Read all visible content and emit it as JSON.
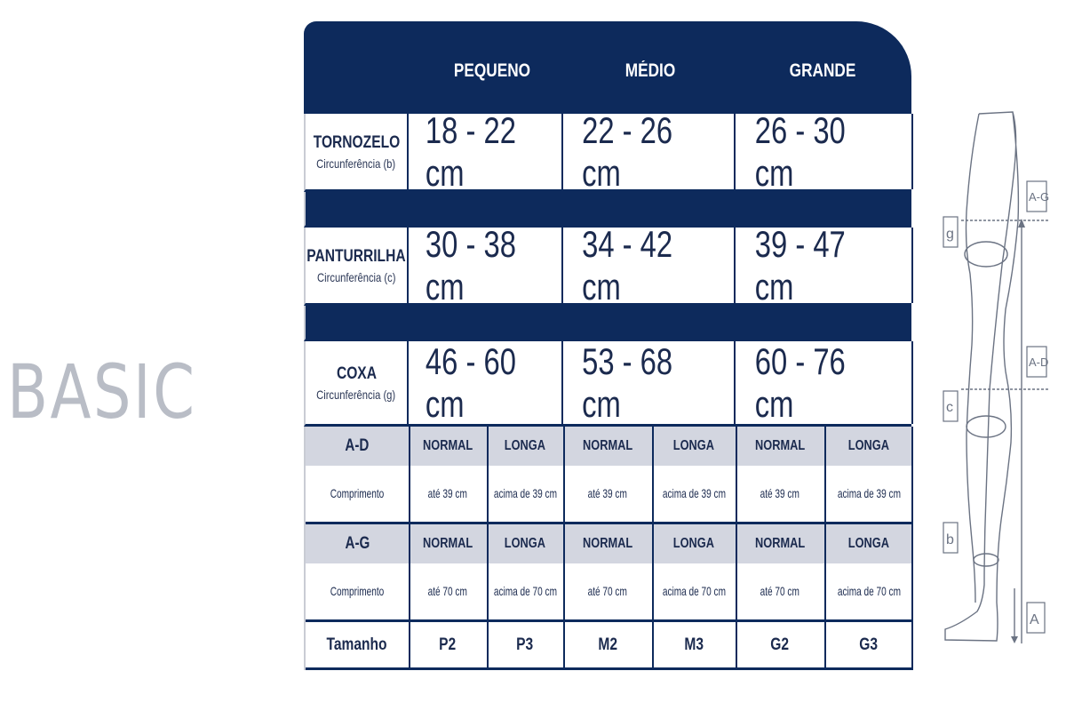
{
  "brand": "BASIC",
  "header": {
    "sizes": [
      "PEQUENO",
      "MÉDIO",
      "GRANDE"
    ]
  },
  "measurements": [
    {
      "label": "TORNOZELO",
      "sub": "Circunferência (b)",
      "values": [
        "18 - 22 cm",
        "22 - 26 cm",
        "26 - 30 cm"
      ]
    },
    {
      "label": "PANTURRILHA",
      "sub": "Circunferência (c)",
      "values": [
        "30 - 38 cm",
        "34 - 42 cm",
        "39 - 47 cm"
      ]
    },
    {
      "label": "COXA",
      "sub": "Circunferência (g)",
      "values": [
        "46 - 60 cm",
        "53 - 68 cm",
        "60 - 76 cm"
      ]
    }
  ],
  "lengths": [
    {
      "label": "A-D",
      "sub": "Comprimento",
      "types": [
        "NORMAL",
        "LONGA",
        "NORMAL",
        "LONGA",
        "NORMAL",
        "LONGA"
      ],
      "values": [
        "até 39 cm",
        "acima de 39 cm",
        "até 39 cm",
        "acima de 39 cm",
        "até 39 cm",
        "acima de 39 cm"
      ]
    },
    {
      "label": "A-G",
      "sub": "Comprimento",
      "types": [
        "NORMAL",
        "LONGA",
        "NORMAL",
        "LONGA",
        "NORMAL",
        "LONGA"
      ],
      "values": [
        "até 70 cm",
        "acima de 70 cm",
        "até 70 cm",
        "acima de 70 cm",
        "até 70 cm",
        "acima de 70 cm"
      ]
    }
  ],
  "tamanho": {
    "label": "Tamanho",
    "codes": [
      "P2",
      "P3",
      "M2",
      "M3",
      "G2",
      "G3"
    ]
  },
  "diagram": {
    "labels": {
      "g": "g",
      "c": "c",
      "b": "b",
      "ag": "A-G",
      "ad": "A-D",
      "a": "A"
    }
  },
  "colors": {
    "navy": "#0d2a5c",
    "light_band": "#d3d6e0",
    "brand_gray": "#b9bdc6"
  }
}
